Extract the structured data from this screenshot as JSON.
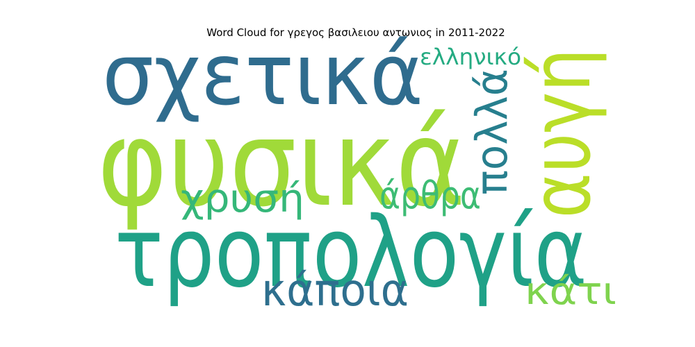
{
  "chart_data": {
    "type": "wordcloud",
    "title": "Word Cloud for γρεγος βασιλειου αντωνιος in 2011-2022",
    "words": [
      {
        "text": "φυσικά",
        "weight": 1.0,
        "color": "#a0da39"
      },
      {
        "text": "τροπολογία",
        "weight": 0.86,
        "color": "#1fa187"
      },
      {
        "text": "σχετικά",
        "weight": 0.75,
        "color": "#2f6c8e"
      },
      {
        "text": "αυγή",
        "weight": 0.7,
        "color": "#bade28"
      },
      {
        "text": "κάποια",
        "weight": 0.4,
        "color": "#2e6f8e"
      },
      {
        "text": "πολλά",
        "weight": 0.38,
        "color": "#277f8e"
      },
      {
        "text": "χρυσή",
        "weight": 0.37,
        "color": "#35b779"
      },
      {
        "text": "άρθρα",
        "weight": 0.35,
        "color": "#3dbc74"
      },
      {
        "text": "κάτι",
        "weight": 0.34,
        "color": "#7fd34e"
      },
      {
        "text": "ελληνικό",
        "weight": 0.22,
        "color": "#25ab82"
      }
    ]
  }
}
